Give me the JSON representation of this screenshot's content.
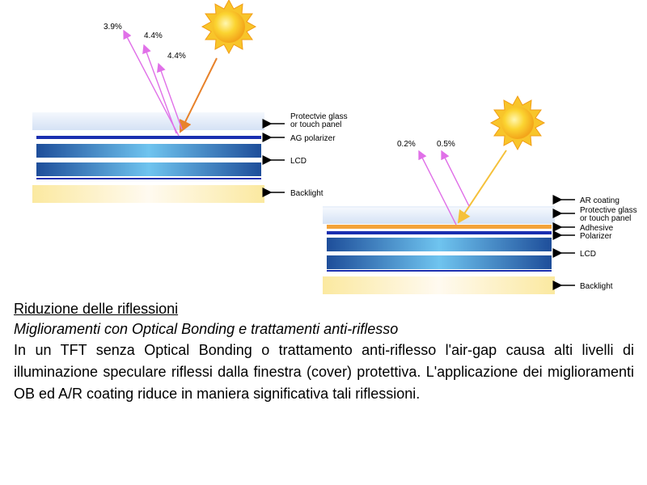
{
  "left_diagram": {
    "reflections": [
      "3.9%",
      "4.4%",
      "4.4%"
    ],
    "layers": [
      "Protectvie glass",
      "or touch panel",
      "AG polarizer",
      "LCD",
      "Backlight"
    ]
  },
  "right_diagram": {
    "reflections": [
      "0.2%",
      "0.5%"
    ],
    "layers": [
      "AR coating",
      "Protective glass",
      "or touch panel",
      "Adhesive",
      "Polarizer",
      "LCD",
      "Backlight"
    ]
  },
  "text": {
    "heading": "Riduzione delle riflessioni",
    "subheading": "Miglioramenti con Optical Bonding e trattamenti anti-riflesso",
    "paragraph": "In un TFT senza Optical Bonding o trattamento anti-riflesso l'air-gap causa alti livelli di illuminazione speculare riflessi dalla finestra (cover) protettiva. L'applicazione dei miglioramenti OB ed A/R coating riduce in maniera significativa tali riflessioni."
  },
  "colors": {
    "incident_ray": "#e8822a",
    "incident_ray_right": "#f5c13a",
    "reflected_ray": "#e070e8",
    "glass": "#dde8f8",
    "polarizer": "#1a2fb0",
    "lcd": "#2a63b8",
    "backlight": "#fdf1b0",
    "adhesive": "#f3a33a",
    "sun": "#f7c51b"
  }
}
